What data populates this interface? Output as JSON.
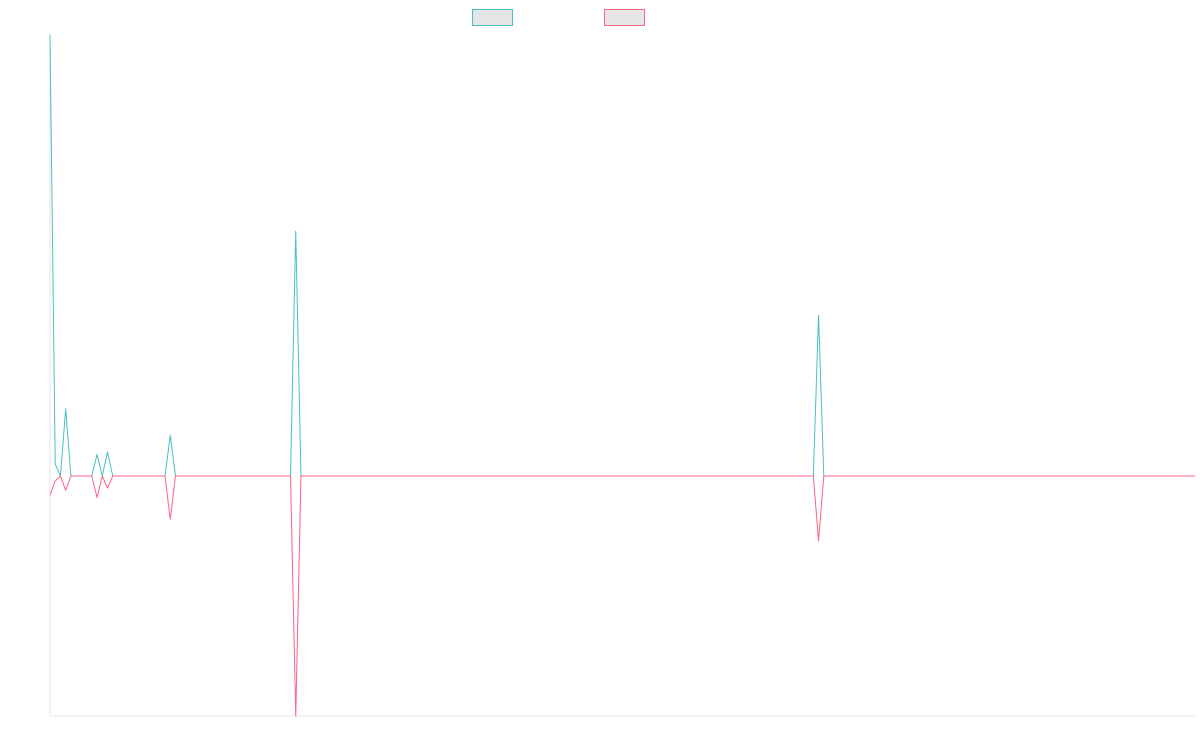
{
  "chart_data": {
    "type": "line",
    "title": "",
    "xlabel": "",
    "ylabel": "",
    "x_count": 220,
    "ylim": [
      -100,
      100
    ],
    "grid": false,
    "legend": {
      "placement": "top-center"
    },
    "series": [
      {
        "color": "#4bc0c0",
        "fill": "#e5e5e5",
        "spikes": [
          {
            "x": 0,
            "y": 184
          },
          {
            "x": 1,
            "y": 5
          },
          {
            "x": 2,
            "y": 0
          },
          {
            "x": 3,
            "y": 28
          },
          {
            "x": 9,
            "y": 9
          },
          {
            "x": 11,
            "y": 10
          },
          {
            "x": 23,
            "y": 17
          },
          {
            "x": 47,
            "y": 102
          },
          {
            "x": 147,
            "y": 67
          }
        ]
      },
      {
        "color": "#ff6384",
        "fill": "#e5e5e5",
        "spikes": [
          {
            "x": 0,
            "y": -8
          },
          {
            "x": 1,
            "y": -2
          },
          {
            "x": 2,
            "y": 0
          },
          {
            "x": 3,
            "y": -6
          },
          {
            "x": 9,
            "y": -9
          },
          {
            "x": 11,
            "y": -5
          },
          {
            "x": 23,
            "y": -18
          },
          {
            "x": 47,
            "y": -100
          },
          {
            "x": 147,
            "y": -27
          }
        ]
      }
    ]
  }
}
